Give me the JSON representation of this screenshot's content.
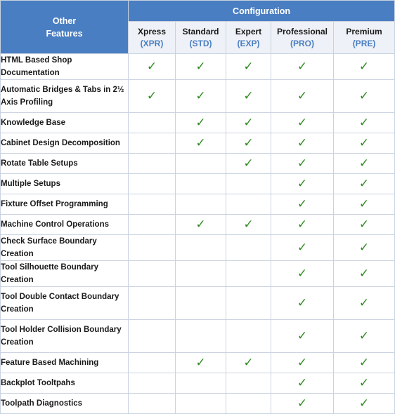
{
  "header": {
    "corner_line1": "Other",
    "corner_line2": "Features",
    "group_label": "Configuration",
    "columns": [
      {
        "name": "Xpress",
        "code": "(XPR)"
      },
      {
        "name": "Standard",
        "code": "(STD)"
      },
      {
        "name": "Expert",
        "code": "(EXP)"
      },
      {
        "name": "Professional",
        "code": "(PRO)"
      },
      {
        "name": "Premium",
        "code": "(PRE)"
      }
    ]
  },
  "check_glyph": "✓",
  "colors": {
    "header_blue": "#4a7ec2",
    "check_green": "#2e8b1f",
    "code_blue": "#4a7ec2"
  },
  "rows": [
    {
      "feature": "HTML Based Shop Documentation",
      "checks": [
        true,
        true,
        true,
        true,
        true
      ],
      "lines": 1
    },
    {
      "feature": "Automatic Bridges & Tabs in 2½ Axis Profiling",
      "checks": [
        true,
        true,
        true,
        true,
        true
      ],
      "lines": 2
    },
    {
      "feature": "Knowledge Base",
      "checks": [
        false,
        true,
        true,
        true,
        true
      ],
      "lines": 1
    },
    {
      "feature": "Cabinet Design Decomposition",
      "checks": [
        false,
        true,
        true,
        true,
        true
      ],
      "lines": 1
    },
    {
      "feature": "Rotate Table Setups",
      "checks": [
        false,
        false,
        true,
        true,
        true
      ],
      "lines": 1
    },
    {
      "feature": "Multiple Setups",
      "checks": [
        false,
        false,
        false,
        true,
        true
      ],
      "lines": 1
    },
    {
      "feature": "Fixture Offset Programming",
      "checks": [
        false,
        false,
        false,
        true,
        true
      ],
      "lines": 1
    },
    {
      "feature": "Machine Control Operations",
      "checks": [
        false,
        true,
        true,
        true,
        true
      ],
      "lines": 1
    },
    {
      "feature": "Check Surface Boundary Creation",
      "checks": [
        false,
        false,
        false,
        true,
        true
      ],
      "lines": 1
    },
    {
      "feature": "Tool Silhouette Boundary Creation",
      "checks": [
        false,
        false,
        false,
        true,
        true
      ],
      "lines": 1
    },
    {
      "feature": "Tool Double Contact Boundary Creation",
      "checks": [
        false,
        false,
        false,
        true,
        true
      ],
      "lines": 2
    },
    {
      "feature": "Tool Holder Collision Boundary Creation",
      "checks": [
        false,
        false,
        false,
        true,
        true
      ],
      "lines": 2
    },
    {
      "feature": "Feature Based Machining",
      "checks": [
        false,
        true,
        true,
        true,
        true
      ],
      "lines": 1
    },
    {
      "feature": "Backplot Tooltpahs",
      "checks": [
        false,
        false,
        false,
        true,
        true
      ],
      "lines": 1
    },
    {
      "feature": "Toolpath Diagnostics",
      "checks": [
        false,
        false,
        false,
        true,
        true
      ],
      "lines": 1
    }
  ]
}
